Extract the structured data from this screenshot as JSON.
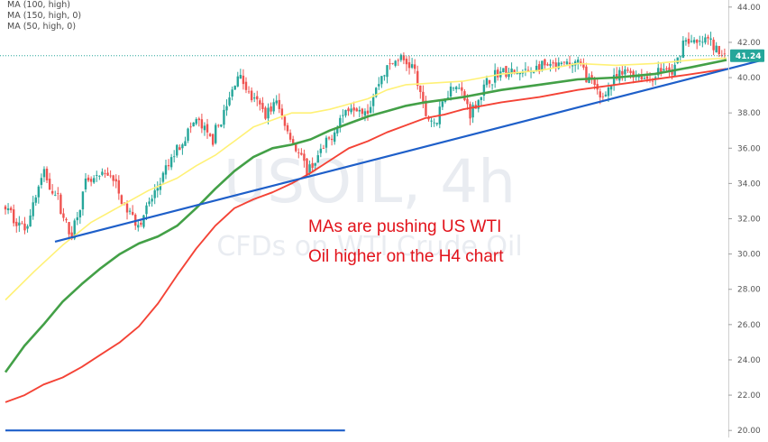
{
  "legend": [
    "MA (100, high)",
    "MA (150, high, 0)",
    "MA (50, high, 0)"
  ],
  "watermark": {
    "symbol": "USOIL, 4h",
    "description": "CFDs on WTI Crude Oil"
  },
  "annotation": {
    "line1": "MAs are pushing US WTI",
    "line2": "Oil higher on the H4 chart"
  },
  "colors": {
    "up": "#26a69a",
    "down": "#ef5350",
    "ma50": "#fff176",
    "ma100": "#43a047",
    "ma150": "#f44336",
    "trendline": "#1e5fc9",
    "price_tag": "#26a69a",
    "annotation": "#e2131b"
  },
  "chart_data": {
    "type": "candlestick",
    "title": "",
    "symbol": "USOIL",
    "timeframe": "4h",
    "ylim": [
      19.6,
      44.4
    ],
    "y_ticks": [
      "20.00",
      "22.00",
      "24.00",
      "26.00",
      "28.00",
      "30.00",
      "32.00",
      "34.00",
      "36.00",
      "38.00",
      "40.00",
      "42.00",
      "44.00"
    ],
    "last_price": 41.24,
    "last_price_label": "41.24",
    "grid": false,
    "legend_position": "top-left",
    "n_bars": 260,
    "price_path": [
      [
        0,
        32.6
      ],
      [
        10,
        31.4
      ],
      [
        20,
        34.6
      ],
      [
        28,
        33.0
      ],
      [
        34,
        30.9
      ],
      [
        42,
        33.9
      ],
      [
        55,
        34.6
      ],
      [
        62,
        32.7
      ],
      [
        70,
        31.7
      ],
      [
        80,
        33.8
      ],
      [
        90,
        36.0
      ],
      [
        100,
        37.6
      ],
      [
        108,
        36.4
      ],
      [
        116,
        38.3
      ],
      [
        122,
        40.3
      ],
      [
        128,
        39.0
      ],
      [
        136,
        38.0
      ],
      [
        142,
        38.6
      ],
      [
        150,
        36.5
      ],
      [
        158,
        34.7
      ],
      [
        164,
        35.5
      ],
      [
        170,
        36.5
      ],
      [
        176,
        37.8
      ],
      [
        182,
        38.5
      ],
      [
        190,
        38.2
      ],
      [
        198,
        40.3
      ],
      [
        206,
        41.1
      ],
      [
        214,
        40.6
      ],
      [
        220,
        37.9
      ],
      [
        226,
        37.4
      ],
      [
        230,
        38.9
      ],
      [
        236,
        39.8
      ],
      [
        244,
        38.0
      ],
      [
        252,
        39.6
      ],
      [
        258,
        40.3
      ],
      [
        270,
        40.2
      ],
      [
        280,
        40.6
      ],
      [
        290,
        40.6
      ],
      [
        300,
        40.9
      ],
      [
        306,
        39.9
      ],
      [
        312,
        38.8
      ],
      [
        318,
        39.7
      ],
      [
        326,
        40.4
      ],
      [
        332,
        40.1
      ],
      [
        338,
        39.9
      ],
      [
        344,
        40.5
      ],
      [
        350,
        40.2
      ],
      [
        356,
        42.3
      ],
      [
        362,
        41.8
      ],
      [
        368,
        42.2
      ],
      [
        374,
        41.3
      ],
      [
        378,
        41.24
      ]
    ],
    "moving_averages": [
      {
        "name": "MA (50, high, 0)",
        "points": [
          [
            0,
            27.4
          ],
          [
            15,
            29.0
          ],
          [
            30,
            30.5
          ],
          [
            45,
            31.8
          ],
          [
            60,
            32.7
          ],
          [
            75,
            33.6
          ],
          [
            90,
            34.3
          ],
          [
            100,
            35.0
          ],
          [
            110,
            35.6
          ],
          [
            120,
            36.4
          ],
          [
            130,
            37.2
          ],
          [
            140,
            37.6
          ],
          [
            150,
            38.0
          ],
          [
            160,
            38.0
          ],
          [
            170,
            38.2
          ],
          [
            180,
            38.5
          ],
          [
            190,
            38.8
          ],
          [
            200,
            39.3
          ],
          [
            210,
            39.6
          ],
          [
            225,
            39.7
          ],
          [
            240,
            39.8
          ],
          [
            260,
            40.2
          ],
          [
            280,
            40.4
          ],
          [
            300,
            40.8
          ],
          [
            320,
            40.7
          ],
          [
            340,
            40.8
          ],
          [
            360,
            41.0
          ],
          [
            378,
            41.1
          ]
        ]
      },
      {
        "name": "MA (100, high)",
        "points": [
          [
            0,
            23.3
          ],
          [
            10,
            24.8
          ],
          [
            20,
            26.0
          ],
          [
            30,
            27.3
          ],
          [
            40,
            28.3
          ],
          [
            50,
            29.2
          ],
          [
            60,
            30.0
          ],
          [
            70,
            30.6
          ],
          [
            80,
            31.0
          ],
          [
            90,
            31.6
          ],
          [
            100,
            32.6
          ],
          [
            110,
            33.7
          ],
          [
            120,
            34.7
          ],
          [
            130,
            35.5
          ],
          [
            140,
            36.0
          ],
          [
            150,
            36.2
          ],
          [
            160,
            36.5
          ],
          [
            170,
            37.0
          ],
          [
            180,
            37.4
          ],
          [
            190,
            37.8
          ],
          [
            200,
            38.1
          ],
          [
            210,
            38.4
          ],
          [
            220,
            38.6
          ],
          [
            240,
            38.9
          ],
          [
            260,
            39.3
          ],
          [
            280,
            39.6
          ],
          [
            300,
            39.9
          ],
          [
            320,
            40.0
          ],
          [
            340,
            40.2
          ],
          [
            360,
            40.6
          ],
          [
            378,
            41.0
          ]
        ]
      },
      {
        "name": "MA (150, high, 0)",
        "points": [
          [
            0,
            21.6
          ],
          [
            10,
            22.0
          ],
          [
            20,
            22.6
          ],
          [
            30,
            23.0
          ],
          [
            40,
            23.6
          ],
          [
            50,
            24.3
          ],
          [
            60,
            25.0
          ],
          [
            70,
            25.9
          ],
          [
            80,
            27.2
          ],
          [
            90,
            28.8
          ],
          [
            100,
            30.3
          ],
          [
            110,
            31.6
          ],
          [
            120,
            32.6
          ],
          [
            130,
            33.1
          ],
          [
            140,
            33.5
          ],
          [
            150,
            34.0
          ],
          [
            160,
            34.6
          ],
          [
            170,
            35.3
          ],
          [
            180,
            36.0
          ],
          [
            190,
            36.4
          ],
          [
            200,
            36.9
          ],
          [
            210,
            37.3
          ],
          [
            220,
            37.7
          ],
          [
            230,
            37.9
          ],
          [
            240,
            38.2
          ],
          [
            260,
            38.6
          ],
          [
            280,
            38.9
          ],
          [
            300,
            39.3
          ],
          [
            320,
            39.6
          ],
          [
            340,
            39.9
          ],
          [
            360,
            40.2
          ],
          [
            378,
            40.5
          ]
        ]
      }
    ],
    "trendline": {
      "from": [
        26,
        30.7
      ],
      "to": [
        397,
        41.0
      ]
    },
    "horizontal_line": {
      "from": [
        0,
        20.0
      ],
      "to": [
        178,
        20.0
      ]
    }
  }
}
